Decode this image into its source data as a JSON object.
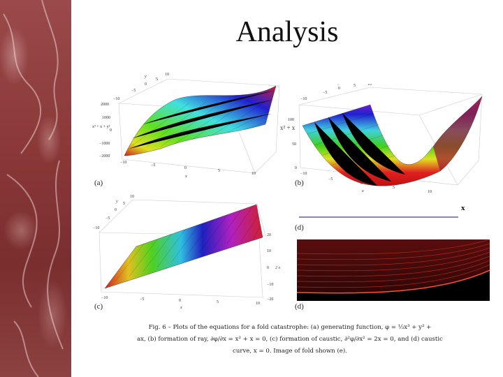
{
  "slide": {
    "title": "Analysis"
  },
  "figures": {
    "a": {
      "label": "(a)",
      "zlabel": "x³ + x + y³",
      "xlabel": "x",
      "ylabel": "y",
      "zticks": [
        "2000",
        "1000",
        "0",
        "−1000",
        "−2000"
      ],
      "xticks": [
        "−10",
        "−5",
        "0",
        "5",
        "10"
      ],
      "yticks": [
        "−10",
        "−5",
        "0",
        "5",
        "10"
      ]
    },
    "b": {
      "label": "(b)",
      "zlabel": "x² + x",
      "xlabel": "x",
      "ylabel": "y",
      "zticks": [
        "100",
        "50",
        "0"
      ],
      "xticks": [
        "−10",
        "−5",
        "0",
        "5",
        "10"
      ],
      "yticks": [
        "−10",
        "−5",
        "0",
        "5",
        "10"
      ]
    },
    "c": {
      "label": "(c)",
      "zlabel": "2 x",
      "xlabel": "x",
      "ylabel": "y",
      "zticks": [
        "20",
        "10",
        "0",
        "−10",
        "−20"
      ],
      "xticks": [
        "−10",
        "−5",
        "0",
        "5",
        "10"
      ],
      "yticks": [
        "−10",
        "−5",
        "0",
        "5",
        "10"
      ]
    },
    "d_curve": {
      "label": "(d)",
      "axis_label": "x",
      "line_color": "#8a86c0"
    },
    "d_image": {
      "label": "(d)"
    }
  },
  "caption": {
    "line1": "Fig. 6 – Plots of the equations for a fold catastrophe: (a) generating function, φ = ⅓x³ + y² +",
    "line2": "ax, (b) formation of ray, ∂φ/∂x = x² + x = 0, (c) formation of caustic, ∂²φ/∂x² = 2x = 0, and (d) caustic",
    "line3": "curve, x = 0. Image of fold shown (e)."
  }
}
